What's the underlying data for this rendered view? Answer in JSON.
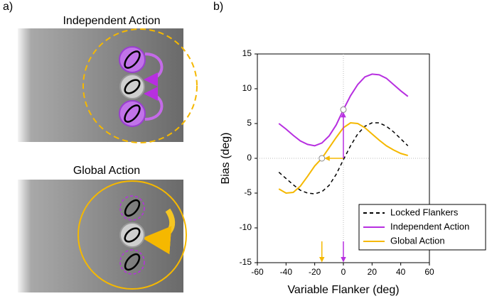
{
  "panel_labels": [
    "a)",
    "b)"
  ],
  "diagram_titles": [
    "Independent Action",
    "Global Action"
  ],
  "chart_data": {
    "type": "line",
    "xlabel": "Variable Flanker (deg)",
    "ylabel": "Bias (deg)",
    "x": [
      -45,
      -40,
      -35,
      -30,
      -25,
      -20,
      -15,
      -10,
      -5,
      0,
      5,
      10,
      15,
      20,
      25,
      30,
      35,
      40,
      45
    ],
    "series": [
      {
        "name": "Locked Flankers",
        "color": "#000000",
        "dashed": true,
        "values": [
          -2.0,
          -2.9,
          -3.8,
          -4.6,
          -5.0,
          -5.1,
          -4.8,
          -3.9,
          -2.3,
          -0.2,
          1.8,
          3.5,
          4.6,
          5.1,
          5.1,
          4.6,
          3.8,
          2.8,
          1.8
        ]
      },
      {
        "name": "Independent Action",
        "color": "#b72fe0",
        "dashed": false,
        "values": [
          5.0,
          4.2,
          3.3,
          2.5,
          2.0,
          1.8,
          2.2,
          3.2,
          4.8,
          7.0,
          9.0,
          10.6,
          11.7,
          12.1,
          12.0,
          11.5,
          10.6,
          9.7,
          8.9
        ]
      },
      {
        "name": "Global Action",
        "color": "#f5b800",
        "dashed": false,
        "values": [
          -4.4,
          -5.0,
          -4.9,
          -4.0,
          -2.6,
          -1.1,
          0.0,
          1.5,
          3.0,
          4.4,
          5.1,
          5.0,
          4.4,
          3.5,
          2.6,
          1.8,
          1.2,
          0.7,
          0.4
        ]
      }
    ],
    "points": [
      {
        "x": -15,
        "y": 0,
        "color": "#f5b800"
      },
      {
        "x": 0,
        "y": 7,
        "color": "#b72fe0"
      }
    ],
    "xlim": [
      -60,
      60
    ],
    "xticks": [
      -60,
      -40,
      -20,
      0,
      20,
      40,
      60
    ],
    "ylim": [
      -15,
      15
    ],
    "yticks": [
      -15,
      -10,
      -5,
      0,
      5,
      10,
      15
    ],
    "legend": "lower right"
  }
}
